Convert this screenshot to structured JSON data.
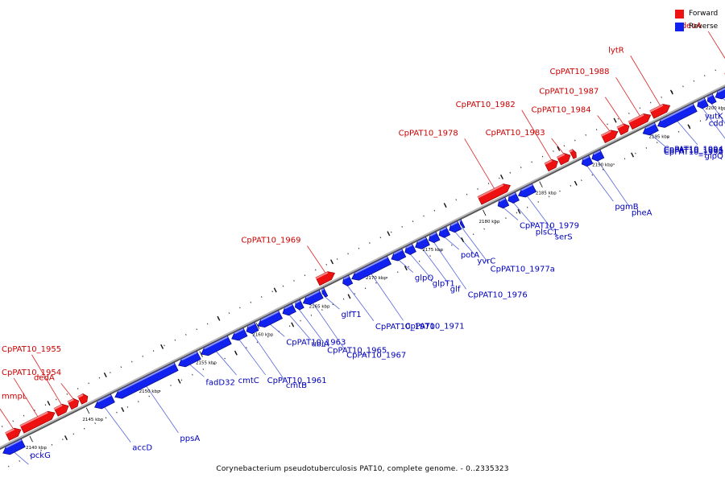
{
  "legend": {
    "forward_label": "Forward",
    "reverse_label": "Reverse",
    "forward_color": "#ee1111",
    "reverse_color": "#1122ee"
  },
  "caption": "Corynebacterium pseudotuberculosis PAT10, complete genome. - 0..2335323",
  "colors": {
    "forward": "#ee1111",
    "forward_top": "#ff8a8a",
    "reverse": "#1122ee",
    "reverse_top": "#8b97ff",
    "backbone": "#8a8a8a",
    "forward_label": "#cc0000",
    "reverse_label": "#0000bb",
    "leader": "#5566dd",
    "leader_forward": "#dd2222"
  },
  "scale": {
    "start_kbp": 2137.5,
    "end_kbp": 2201.5
  },
  "ticks": [
    {
      "kbp": 2140,
      "label": "2140 kbp"
    },
    {
      "kbp": 2145,
      "label": "2145 kbp"
    },
    {
      "kbp": 2150,
      "label": "2150 kbp"
    },
    {
      "kbp": 2155,
      "label": "2155 kbp"
    },
    {
      "kbp": 2160,
      "label": "2160 kbp"
    },
    {
      "kbp": 2165,
      "label": "2165 kbp"
    },
    {
      "kbp": 2170,
      "label": "2170 kbp"
    },
    {
      "kbp": 2175,
      "label": "2175 kbp"
    },
    {
      "kbp": 2180,
      "label": "2180 kbp"
    },
    {
      "kbp": 2185,
      "label": "2185 kbp"
    },
    {
      "kbp": 2190,
      "label": "2190 kbp"
    },
    {
      "kbp": 2195,
      "label": "2195 kbp"
    },
    {
      "kbp": 2200,
      "label": "2200 kbp"
    }
  ],
  "genes": [
    {
      "name": "pckG",
      "strand": "reverse",
      "start_kbp": 2137.5,
      "end_kbp": 2139.3
    },
    {
      "name": "mmpL",
      "strand": "forward",
      "start_kbp": 2138.4,
      "end_kbp": 2139.6
    },
    {
      "name": "CpPAT10_1954",
      "strand": "forward",
      "start_kbp": 2139.7,
      "end_kbp": 2142.6
    },
    {
      "name": "CpPAT10_1955",
      "strand": "forward",
      "start_kbp": 2142.7,
      "end_kbp": 2143.8
    },
    {
      "name": "dedA",
      "strand": "forward",
      "start_kbp": 2143.9,
      "end_kbp": 2144.7
    },
    {
      "name": "",
      "strand": "forward",
      "start_kbp": 2144.8,
      "end_kbp": 2145.5
    },
    {
      "name": "accD",
      "strand": "reverse",
      "start_kbp": 2145.6,
      "end_kbp": 2147.2
    },
    {
      "name": "ppsA",
      "strand": "reverse",
      "start_kbp": 2147.4,
      "end_kbp": 2152.8
    },
    {
      "name": "fadD32",
      "strand": "reverse",
      "start_kbp": 2153.0,
      "end_kbp": 2154.8
    },
    {
      "name": "cmtC",
      "strand": "reverse",
      "start_kbp": 2155.0,
      "end_kbp": 2157.5
    },
    {
      "name": "CpPAT10_1961",
      "strand": "reverse",
      "start_kbp": 2157.7,
      "end_kbp": 2158.9
    },
    {
      "name": "cmtB",
      "strand": "reverse",
      "start_kbp": 2159.0,
      "end_kbp": 2159.9
    },
    {
      "name": "CpPAT10_1963",
      "strand": "reverse",
      "start_kbp": 2160.0,
      "end_kbp": 2162.0
    },
    {
      "name": "ubiA",
      "strand": "reverse",
      "start_kbp": 2162.2,
      "end_kbp": 2163.2
    },
    {
      "name": "CpPAT10_1965",
      "strand": "reverse",
      "start_kbp": 2163.3,
      "end_kbp": 2163.9
    },
    {
      "name": "CpPAT10_1967",
      "strand": "reverse",
      "start_kbp": 2164.0,
      "end_kbp": 2165.6
    },
    {
      "name": "glfT1",
      "strand": "reverse",
      "start_kbp": 2165.7,
      "end_kbp": 2166.0
    },
    {
      "name": "CpPAT10_1969",
      "strand": "forward",
      "start_kbp": 2165.8,
      "end_kbp": 2167.3
    },
    {
      "name": "CpPAT10_1970",
      "strand": "reverse",
      "start_kbp": 2167.5,
      "end_kbp": 2168.2
    },
    {
      "name": "CpPAT10_1971",
      "strand": "reverse",
      "start_kbp": 2168.3,
      "end_kbp": 2171.6
    },
    {
      "name": "glpQ",
      "strand": "reverse",
      "start_kbp": 2171.8,
      "end_kbp": 2172.9
    },
    {
      "name": "glpT1",
      "strand": "reverse",
      "start_kbp": 2173.0,
      "end_kbp": 2173.8
    },
    {
      "name": "glf",
      "strand": "reverse",
      "start_kbp": 2173.9,
      "end_kbp": 2175.0
    },
    {
      "name": "CpPAT10_1976",
      "strand": "reverse",
      "start_kbp": 2175.1,
      "end_kbp": 2175.9
    },
    {
      "name": "potA",
      "strand": "reverse",
      "start_kbp": 2176.0,
      "end_kbp": 2176.8
    },
    {
      "name": "yvrC",
      "strand": "reverse",
      "start_kbp": 2176.9,
      "end_kbp": 2177.8
    },
    {
      "name": "CpPAT10_1977a",
      "strand": "reverse",
      "start_kbp": 2177.9,
      "end_kbp": 2178.1
    },
    {
      "name": "CpPAT10_1978",
      "strand": "forward",
      "start_kbp": 2180.1,
      "end_kbp": 2182.8
    },
    {
      "name": "CpPAT10_1979",
      "strand": "reverse",
      "start_kbp": 2181.2,
      "end_kbp": 2182.0
    },
    {
      "name": "plsC1",
      "strand": "reverse",
      "start_kbp": 2182.1,
      "end_kbp": 2182.9
    },
    {
      "name": "serS",
      "strand": "reverse",
      "start_kbp": 2183.0,
      "end_kbp": 2184.4
    },
    {
      "name": "CpPAT10_1982",
      "strand": "forward",
      "start_kbp": 2186.0,
      "end_kbp": 2187.0
    },
    {
      "name": "CpPAT10_1983",
      "strand": "forward",
      "start_kbp": 2187.1,
      "end_kbp": 2188.1
    },
    {
      "name": "",
      "strand": "forward",
      "start_kbp": 2188.2,
      "end_kbp": 2188.6
    },
    {
      "name": "pgmB",
      "strand": "reverse",
      "start_kbp": 2188.6,
      "end_kbp": 2189.4
    },
    {
      "name": "pheA",
      "strand": "reverse",
      "start_kbp": 2189.5,
      "end_kbp": 2190.4
    },
    {
      "name": "CpPAT10_1984",
      "strand": "forward",
      "start_kbp": 2191.0,
      "end_kbp": 2192.3
    },
    {
      "name": "CpPAT10_1987",
      "strand": "forward",
      "start_kbp": 2192.4,
      "end_kbp": 2193.3
    },
    {
      "name": "CpPAT10_1988",
      "strand": "forward",
      "start_kbp": 2193.4,
      "end_kbp": 2195.2
    },
    {
      "name": "lytR",
      "strand": "forward",
      "start_kbp": 2195.3,
      "end_kbp": 2196.9
    },
    {
      "name": "CpPAT10_1990",
      "strand": "reverse",
      "start_kbp": 2194.0,
      "end_kbp": 2195.2
    },
    {
      "name": "CpPAT10_1991",
      "strand": "reverse",
      "start_kbp": 2195.3,
      "end_kbp": 2198.6
    },
    {
      "name": "CpPAT10_1994",
      "strand": "reverse",
      "start_kbp": 2198.8,
      "end_kbp": 2199.6
    },
    {
      "name": "glpQ",
      "strand": "reverse",
      "start_kbp": 2199.7,
      "end_kbp": 2200.3
    },
    {
      "name": "yutK",
      "strand": "reverse",
      "start_kbp": 2200.4,
      "end_kbp": 2201.5
    },
    {
      "name": "cdd",
      "strand": "reverse",
      "start_kbp": 2201.6,
      "end_kbp": 2201.8
    },
    {
      "name": "deoA",
      "strand": "forward",
      "start_kbp": 2201.9,
      "end_kbp": 2203.0
    }
  ]
}
